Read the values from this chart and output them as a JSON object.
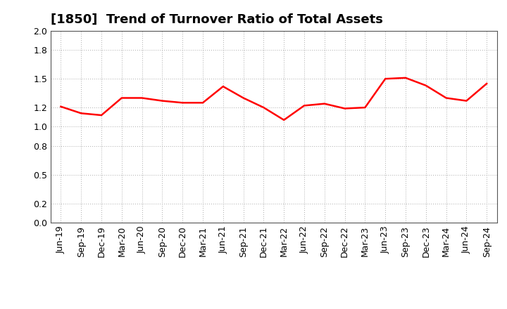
{
  "title": "[1850]  Trend of Turnover Ratio of Total Assets",
  "x_labels": [
    "Jun-19",
    "Sep-19",
    "Dec-19",
    "Mar-20",
    "Jun-20",
    "Sep-20",
    "Dec-20",
    "Mar-21",
    "Jun-21",
    "Sep-21",
    "Dec-21",
    "Mar-22",
    "Jun-22",
    "Sep-22",
    "Dec-22",
    "Mar-23",
    "Jun-23",
    "Sep-23",
    "Dec-23",
    "Mar-24",
    "Jun-24",
    "Sep-24"
  ],
  "values": [
    1.21,
    1.14,
    1.12,
    1.3,
    1.3,
    1.27,
    1.25,
    1.25,
    1.42,
    1.3,
    1.2,
    1.07,
    1.22,
    1.24,
    1.19,
    1.2,
    1.5,
    1.51,
    1.43,
    1.3,
    1.27,
    1.45
  ],
  "line_color": "#FF0000",
  "line_width": 1.8,
  "ylim": [
    0.0,
    2.0
  ],
  "yticks": [
    0.0,
    0.2,
    0.5,
    0.8,
    1.0,
    1.2,
    1.5,
    1.8,
    2.0
  ],
  "grid_color": "#aaaaaa",
  "bg_color": "#ffffff",
  "title_fontsize": 13,
  "tick_fontsize": 9
}
